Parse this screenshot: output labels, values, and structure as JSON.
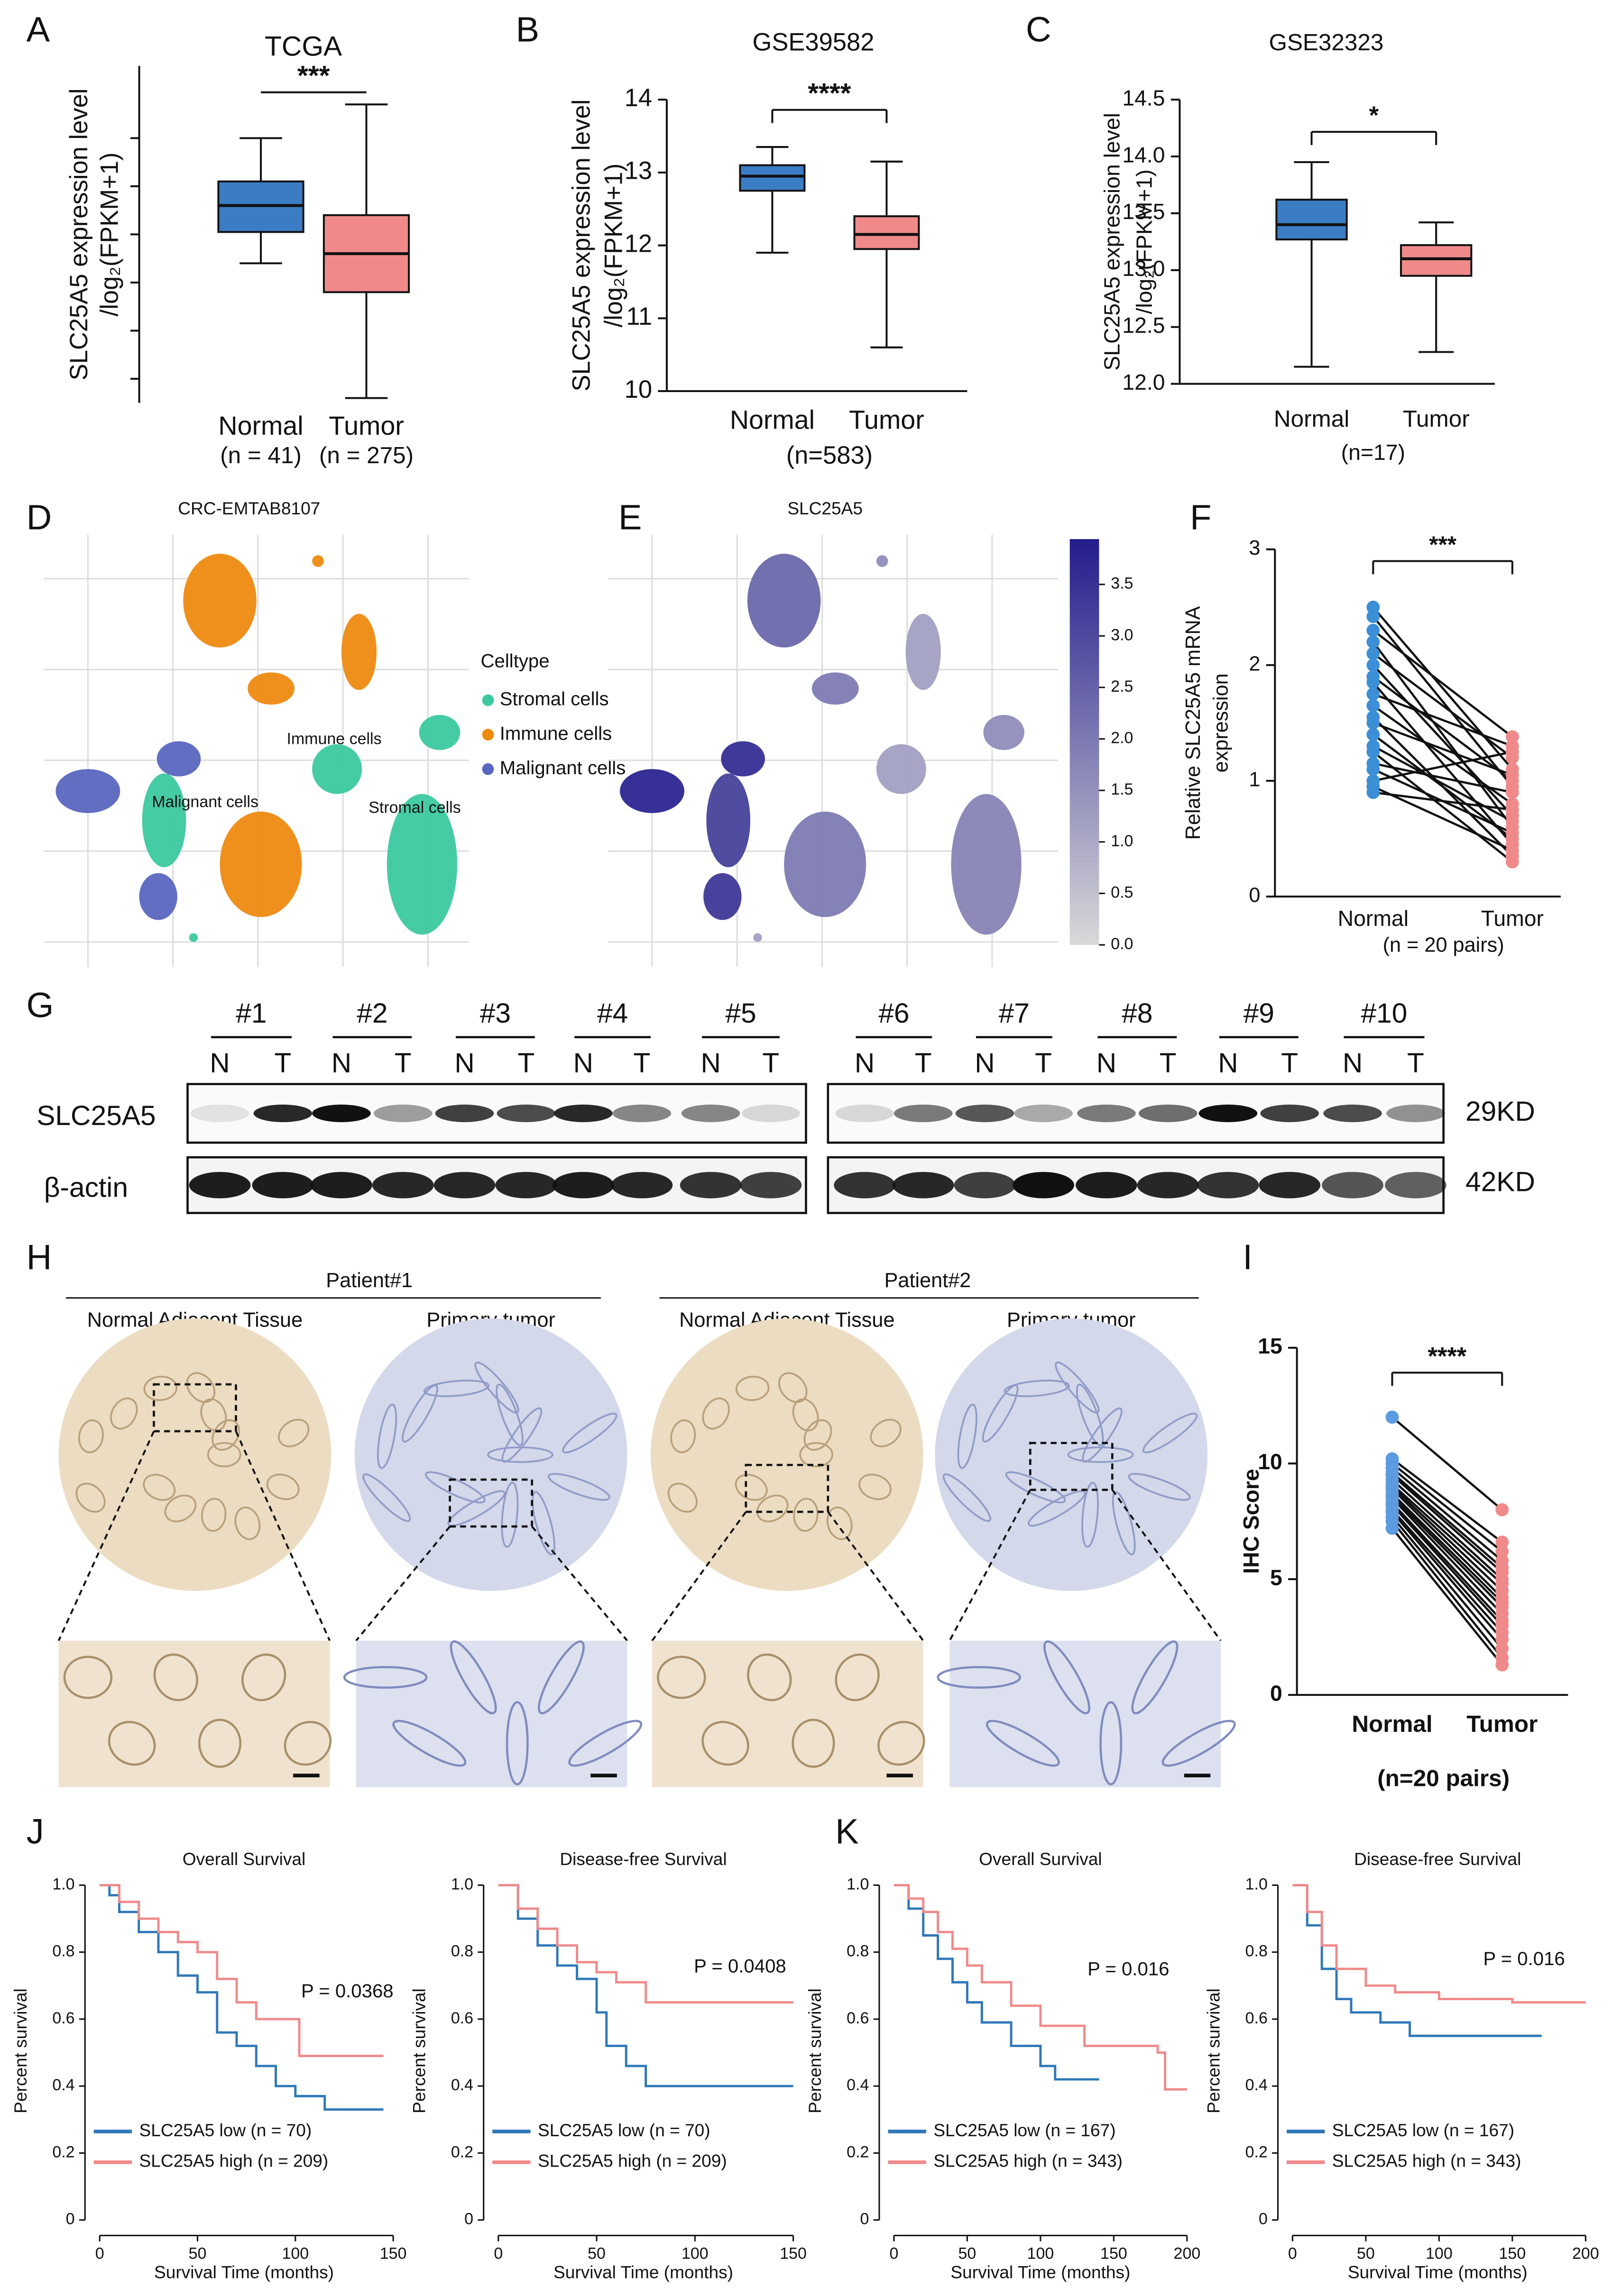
{
  "chart_data": [
    {
      "panel": "A",
      "type": "box",
      "title": "TCGA",
      "y_label": [
        "SLC25A5 expression level",
        "/log₂(FPKM+1)"
      ],
      "categories": [
        "Normal",
        "Tumor"
      ],
      "category_notes": [
        "(n = 41)",
        "(n = 275)"
      ],
      "colors": [
        "#3a7dc4",
        "#f08a8a"
      ],
      "boxes": [
        {
          "min": 2.4,
          "q1": 3.05,
          "median": 3.6,
          "q3": 4.1,
          "max": 5.0
        },
        {
          "min": -0.4,
          "q1": 1.8,
          "median": 2.6,
          "q3": 3.4,
          "max": 5.7
        }
      ],
      "ylim": [
        -0.5,
        6.5
      ],
      "yticks": [
        0,
        1,
        2,
        3,
        4,
        5
      ],
      "tick_labels": false,
      "significance": "***"
    },
    {
      "panel": "B",
      "type": "box",
      "title": "GSE39582",
      "y_label": [
        "SLC25A5 expression  level",
        "/log₂(FPKM+1)"
      ],
      "categories": [
        "Normal",
        "Tumor"
      ],
      "note": "(n=583)",
      "colors": [
        "#3a7dc4",
        "#f08a8a"
      ],
      "boxes": [
        {
          "min": 11.9,
          "q1": 12.75,
          "median": 12.95,
          "q3": 13.1,
          "max": 13.35
        },
        {
          "min": 10.6,
          "q1": 11.95,
          "median": 12.15,
          "q3": 12.4,
          "max": 13.15
        }
      ],
      "ylim": [
        10,
        14
      ],
      "yticks": [
        10,
        11,
        12,
        13,
        14
      ],
      "significance": "****"
    },
    {
      "panel": "C",
      "type": "box",
      "title": "GSE32323",
      "y_label": [
        "SLC25A5 expression  level",
        "/log₂(FPKM+1)"
      ],
      "categories": [
        "Normal",
        "Tumor"
      ],
      "note": "(n=17)",
      "colors": [
        "#3a7dc4",
        "#f08a8a"
      ],
      "boxes": [
        {
          "min": 12.15,
          "q1": 13.27,
          "median": 13.4,
          "q3": 13.62,
          "max": 13.95
        },
        {
          "min": 12.28,
          "q1": 12.95,
          "median": 13.1,
          "q3": 13.22,
          "max": 13.42
        }
      ],
      "ylim": [
        12,
        14.5
      ],
      "yticks": [
        {
          "value": 12,
          "label": "12.0"
        },
        12.5,
        {
          "value": 13,
          "label": "13.0"
        },
        13.5,
        {
          "value": 14,
          "label": "14.0"
        },
        14.5
      ],
      "significance": "*"
    },
    {
      "panel": "D",
      "type": "umap",
      "title": "CRC-EMTAB8107",
      "legend_title": "Celltype",
      "series": [
        {
          "name": "Stromal cells",
          "color": "#3cc9a0"
        },
        {
          "name": "Immune cells",
          "color": "#ee8a10"
        },
        {
          "name": "Malignant cells",
          "color": "#5a66bf"
        }
      ],
      "annotations": [
        "Immune cells",
        "Malignant cells",
        "Stromal cells"
      ]
    },
    {
      "panel": "E",
      "type": "umap",
      "title": "SLC25A5",
      "colorbar": {
        "lim": [
          0,
          3.94
        ],
        "ticks": [
          {
            "value": 0,
            "label": "0.0"
          },
          0.5,
          {
            "value": 1,
            "label": "1.0"
          },
          1.5,
          {
            "value": 2,
            "label": "2.0"
          },
          2.5,
          {
            "value": 3,
            "label": "3.0"
          },
          3.5
        ],
        "colors": [
          "#d9d9d9",
          "#231c8c"
        ]
      }
    },
    {
      "panel": "F",
      "type": "paired",
      "y_label": [
        "Relative SLC25A5 mRNA",
        "expression"
      ],
      "categories": [
        "Normal",
        "Tumor"
      ],
      "note": "(n = 20 pairs)",
      "colors": [
        "#3a8fd6",
        "#f08a8a"
      ],
      "significance": "***",
      "values": [
        [
          2.5,
          2.42,
          2.3,
          2.2,
          2.1,
          2.0,
          1.9,
          1.85,
          1.75,
          1.65,
          1.55,
          1.5,
          1.4,
          1.3,
          1.25,
          1.15,
          1.1,
          1.0,
          0.95,
          0.9
        ],
        [
          1.1,
          0.95,
          1.38,
          0.6,
          1.2,
          0.7,
          1.0,
          0.45,
          1.3,
          0.8,
          0.35,
          1.05,
          0.5,
          0.65,
          0.3,
          0.9,
          0.55,
          1.25,
          0.4,
          0.75
        ]
      ],
      "ylim": [
        0,
        3
      ],
      "yticks": [
        0,
        1,
        2,
        3
      ]
    },
    {
      "panel": "I",
      "type": "paired",
      "y_label": [
        "IHC Score"
      ],
      "categories": [
        "Normal",
        "Tumor"
      ],
      "note": "(n=20 pairs)",
      "colors": [
        "#5b9be0",
        "#f08a8a"
      ],
      "significance": "****",
      "values": [
        [
          12,
          10.2,
          10,
          9.8,
          9.6,
          9.5,
          9.3,
          9.1,
          9,
          8.9,
          8.7,
          8.6,
          8.5,
          8.3,
          8.2,
          8,
          7.9,
          7.7,
          7.5,
          7.2
        ],
        [
          8,
          6.6,
          6.2,
          5.8,
          5.5,
          5.3,
          5,
          4.8,
          4.5,
          4.2,
          4,
          3.8,
          3.5,
          3.2,
          3,
          2.7,
          2.4,
          2,
          1.6,
          1.3
        ]
      ],
      "ylim": [
        0,
        15
      ],
      "yticks": [
        0,
        5,
        10,
        15
      ]
    },
    {
      "panel": "J",
      "type": "km",
      "title": "Overall Survival",
      "x_label": "Survival Time (months)",
      "y_label": "Percent survival",
      "annotation": "P = 0.0368",
      "series": [
        {
          "name": "SLC25A5 low (n = 70)",
          "color": "#2f78b8",
          "x": [
            0,
            5,
            10,
            20,
            30,
            40,
            50,
            60,
            70,
            80,
            90,
            100,
            115,
            145
          ],
          "values": [
            1,
            0.97,
            0.92,
            0.86,
            0.8,
            0.73,
            0.68,
            0.56,
            0.52,
            0.46,
            0.4,
            0.37,
            0.33,
            0.33
          ]
        },
        {
          "name": "SLC25A5 high (n = 209)",
          "color": "#f08a8a",
          "x": [
            0,
            10,
            20,
            30,
            40,
            50,
            60,
            70,
            80,
            100,
            102,
            145
          ],
          "values": [
            1,
            0.95,
            0.9,
            0.86,
            0.83,
            0.8,
            0.72,
            0.65,
            0.6,
            0.6,
            0.49,
            0.49
          ]
        }
      ],
      "xlim": [
        -7.5,
        155
      ],
      "xticks": [
        0,
        50,
        100,
        150
      ],
      "ylim": [
        -0.02,
        1.03
      ],
      "yticks": [
        0,
        0.2,
        0.4,
        0.6,
        0.8,
        {
          "value": 1,
          "label": "1.0"
        }
      ]
    },
    {
      "type": "km",
      "title": "Disease-free Survival",
      "x_label": "Survival Time (months)",
      "y_label": "Percent survival",
      "annotation": "P = 0.0408",
      "series": [
        {
          "name": "SLC25A5 low (n = 70)",
          "color": "#2f78b8",
          "x": [
            0,
            10,
            20,
            30,
            40,
            50,
            55,
            65,
            75,
            150
          ],
          "values": [
            1,
            0.9,
            0.82,
            0.76,
            0.72,
            0.62,
            0.52,
            0.46,
            0.4,
            0.4
          ]
        },
        {
          "name": "SLC25A5 high (n = 209)",
          "color": "#f08a8a",
          "x": [
            0,
            10,
            20,
            30,
            40,
            50,
            60,
            75,
            150
          ],
          "values": [
            1,
            0.93,
            0.87,
            0.82,
            0.77,
            0.74,
            0.71,
            0.65,
            0.65
          ]
        }
      ],
      "xlim": [
        -7.5,
        155
      ],
      "xticks": [
        0,
        50,
        100,
        150
      ],
      "ylim": [
        -0.02,
        1.03
      ],
      "yticks": [
        0,
        0.2,
        0.4,
        0.6,
        0.8,
        {
          "value": 1,
          "label": "1.0"
        }
      ]
    },
    {
      "panel": "K",
      "type": "km",
      "title": "Overall Survival",
      "x_label": "Survival Time (months)",
      "y_label": "Percent survival",
      "annotation": "P = 0.016",
      "series": [
        {
          "name": "SLC25A5 low (n = 167)",
          "color": "#2f78b8",
          "x": [
            0,
            10,
            20,
            30,
            40,
            50,
            60,
            80,
            100,
            110,
            140
          ],
          "values": [
            1,
            0.93,
            0.85,
            0.78,
            0.71,
            0.65,
            0.59,
            0.52,
            0.46,
            0.42,
            0.42
          ]
        },
        {
          "name": "SLC25A5 high (n = 343)",
          "color": "#f08a8a",
          "x": [
            0,
            10,
            20,
            30,
            40,
            50,
            60,
            80,
            100,
            130,
            180,
            185,
            200
          ],
          "values": [
            1,
            0.96,
            0.92,
            0.86,
            0.81,
            0.76,
            0.71,
            0.64,
            0.58,
            0.52,
            0.5,
            0.39,
            0.39
          ]
        }
      ],
      "xlim": [
        -10,
        210
      ],
      "xticks": [
        0,
        50,
        100,
        150,
        200
      ],
      "ylim": [
        -0.02,
        1.03
      ],
      "yticks": [
        0,
        0.2,
        0.4,
        0.6,
        0.8,
        {
          "value": 1,
          "label": "1.0"
        }
      ]
    },
    {
      "type": "km",
      "title": "Disease-free Survival",
      "x_label": "Survival Time (months)",
      "y_label": "Percent survival",
      "annotation": "P = 0.016",
      "series": [
        {
          "name": "SLC25A5 low (n = 167)",
          "color": "#2f78b8",
          "x": [
            0,
            10,
            20,
            30,
            40,
            60,
            80,
            170
          ],
          "values": [
            1,
            0.88,
            0.75,
            0.66,
            0.62,
            0.59,
            0.55,
            0.55
          ]
        },
        {
          "name": "SLC25A5 high (n = 343)",
          "color": "#f08a8a",
          "x": [
            0,
            10,
            20,
            30,
            50,
            70,
            100,
            150,
            200
          ],
          "values": [
            1,
            0.92,
            0.82,
            0.75,
            0.7,
            0.68,
            0.66,
            0.65,
            0.65
          ]
        }
      ],
      "xlim": [
        -10,
        208
      ],
      "xticks": [
        0,
        50,
        100,
        150,
        200
      ],
      "ylim": [
        -0.02,
        1.03
      ],
      "yticks": [
        0,
        0.2,
        0.4,
        0.6,
        0.8,
        {
          "value": 1,
          "label": "1.0"
        }
      ]
    }
  ],
  "western_blot": {
    "panel": "G",
    "samples": [
      "#1",
      "#2",
      "#3",
      "#4",
      "#5",
      "#6",
      "#7",
      "#8",
      "#9",
      "#10"
    ],
    "lanes": [
      "N",
      "T"
    ],
    "proteins": [
      "SLC25A5",
      "β-actin"
    ],
    "sizes": [
      "29KD",
      "42KD"
    ]
  },
  "ihc": {
    "panel": "H",
    "patients": [
      {
        "name": "Patient#1",
        "tissues": [
          "Normal Adjacent Tissue",
          "Primary tumor"
        ]
      },
      {
        "name": "Patient#2",
        "tissues": [
          "Normal Adjacent Tissue",
          "Primary tumor"
        ]
      }
    ]
  }
}
